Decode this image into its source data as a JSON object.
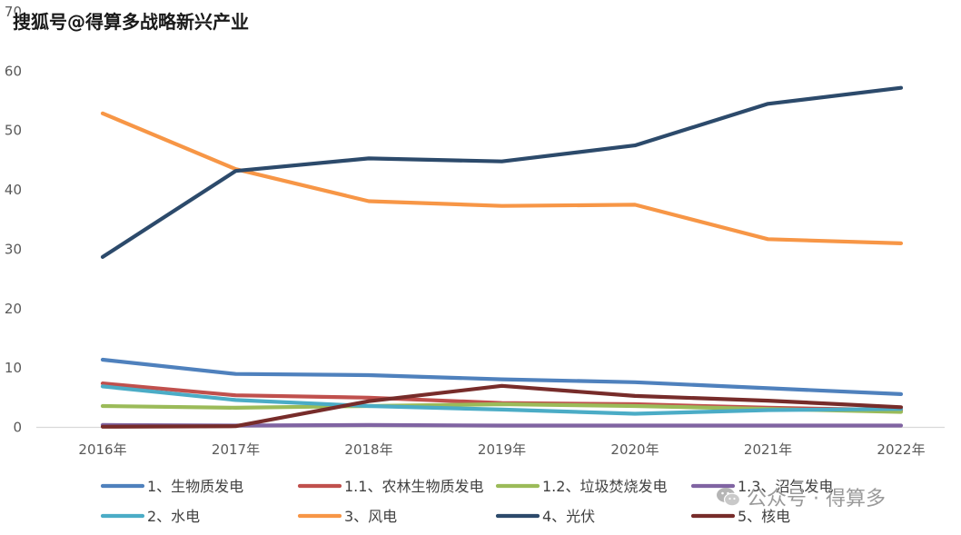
{
  "watermarks": {
    "top": "搜狐号@得算多战略新兴产业",
    "bottom": "公众号 · 得算多"
  },
  "chart_data": {
    "type": "line",
    "title": "",
    "xlabel": "",
    "ylabel": "",
    "ylim": [
      0,
      70
    ],
    "yticks": [
      "0",
      "10",
      "20",
      "30",
      "40",
      "50",
      "60",
      "70"
    ],
    "categories": [
      "2016年",
      "2017年",
      "2018年",
      "2019年",
      "2020年",
      "2021年",
      "2022年"
    ],
    "grid": "horizontal baseline only",
    "legend_position": "bottom",
    "series": [
      {
        "name": "1、生物质发电",
        "color": "#4f81bd",
        "values": [
          11.4,
          9.0,
          8.8,
          8.1,
          7.6,
          6.6,
          5.6
        ]
      },
      {
        "name": "1.1、农林生物质发电",
        "color": "#c0504d",
        "values": [
          7.4,
          5.4,
          5.0,
          4.1,
          3.9,
          3.3,
          2.9
        ]
      },
      {
        "name": "1.2、垃圾焚烧发电",
        "color": "#9bbb59",
        "values": [
          3.6,
          3.3,
          3.6,
          3.9,
          3.6,
          3.1,
          2.6
        ]
      },
      {
        "name": "1.3、沼气发电",
        "color": "#8064a2",
        "values": [
          0.4,
          0.3,
          0.4,
          0.3,
          0.3,
          0.3,
          0.3
        ]
      },
      {
        "name": "2、水电",
        "color": "#4bacc6",
        "values": [
          6.9,
          4.6,
          3.6,
          3.0,
          2.3,
          2.9,
          3.1
        ]
      },
      {
        "name": "3、风电",
        "color": "#f79646",
        "values": [
          52.9,
          43.5,
          38.1,
          37.3,
          37.5,
          31.7,
          31.0
        ]
      },
      {
        "name": "4、光伏",
        "color": "#2c4a6b",
        "values": [
          28.7,
          43.2,
          45.3,
          44.8,
          47.5,
          54.5,
          57.2
        ]
      },
      {
        "name": "5、核电",
        "color": "#772c2a",
        "values": [
          0.1,
          0.2,
          4.4,
          7.0,
          5.3,
          4.5,
          3.4
        ]
      }
    ]
  }
}
